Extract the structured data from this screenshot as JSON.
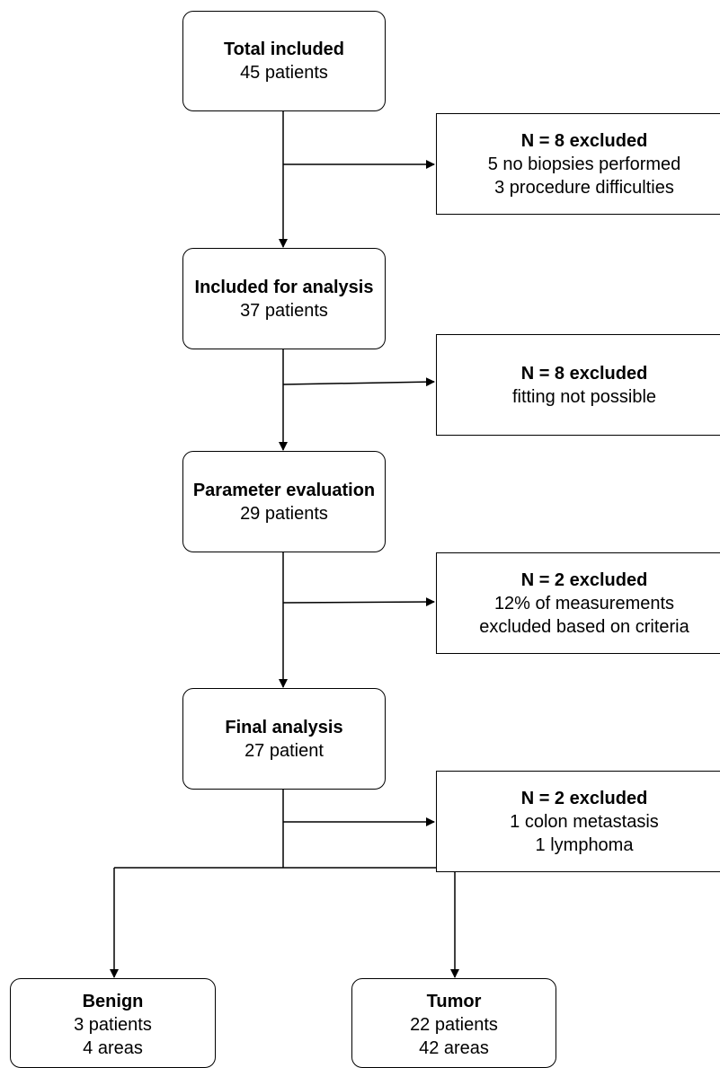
{
  "flowchart": {
    "total_included": {
      "title": "Total included",
      "lines": [
        "45 patients"
      ]
    },
    "excluded_1": {
      "title": "N = 8 excluded",
      "lines": [
        "5 no biopsies performed",
        "3 procedure difficulties"
      ]
    },
    "included_for_analysis": {
      "title": "Included for analysis",
      "lines": [
        "37 patients"
      ]
    },
    "excluded_2": {
      "title": "N = 8 excluded",
      "lines": [
        "fitting not possible"
      ]
    },
    "parameter_evaluation": {
      "title": "Parameter evaluation",
      "lines": [
        "29 patients"
      ]
    },
    "excluded_3": {
      "title": "N = 2 excluded",
      "lines": [
        "12% of measurements",
        "excluded based on criteria"
      ]
    },
    "final_analysis": {
      "title": "Final analysis",
      "lines": [
        "27 patient"
      ]
    },
    "excluded_4": {
      "title": "N = 2 excluded",
      "lines": [
        "1 colon metastasis",
        "1 lymphoma"
      ]
    },
    "benign": {
      "title": "Benign",
      "lines": [
        "3 patients",
        "4 areas"
      ]
    },
    "tumor": {
      "title": "Tumor",
      "lines": [
        "22 patients",
        "42 areas"
      ]
    }
  }
}
